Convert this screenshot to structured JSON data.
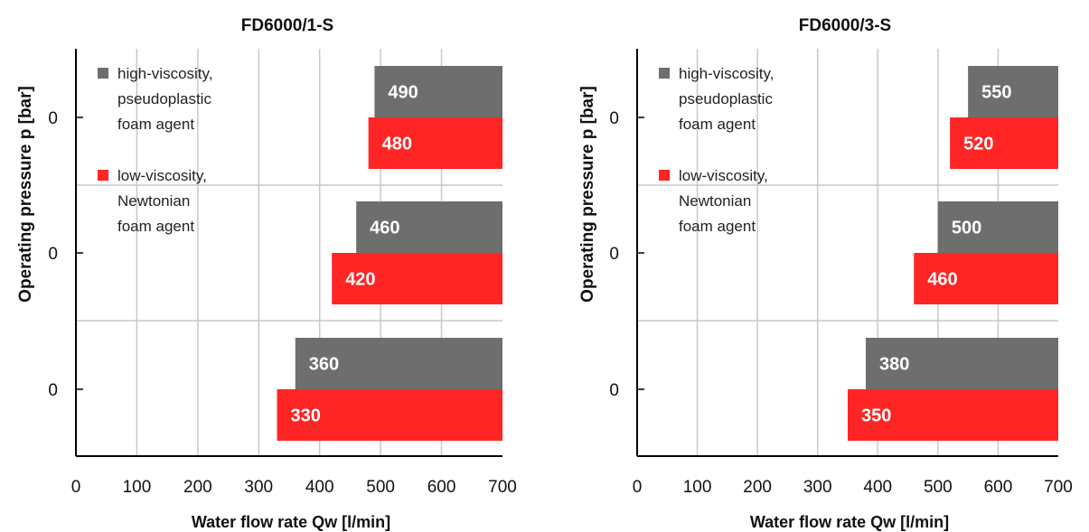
{
  "colors": {
    "high_viscosity": "#6e6e6e",
    "low_viscosity": "#ff2525",
    "grid": "#c8c8c8",
    "axis": "#000000"
  },
  "chart_data": [
    {
      "type": "bar",
      "orientation": "horizontal",
      "title": "FD6000/1-S",
      "xlabel": "Water flow rate Qw [l/min]",
      "ylabel": "Operating pressure  p [bar]",
      "xlim": [
        0,
        700
      ],
      "xticks": [
        "0",
        "100",
        "200",
        "300",
        "400",
        "500",
        "600",
        "700"
      ],
      "categories": [
        "0",
        "0",
        "0"
      ],
      "grid": true,
      "legend_position": "top-left",
      "series": [
        {
          "name": [
            "high-viscosity,",
            "pseudoplastic",
            "foam agent"
          ],
          "color_key": "high_viscosity",
          "values": [
            490,
            460,
            360
          ]
        },
        {
          "name": [
            "low-viscosity,",
            "Newtonian",
            "foam agent"
          ],
          "color_key": "low_viscosity",
          "values": [
            480,
            420,
            330
          ]
        }
      ]
    },
    {
      "type": "bar",
      "orientation": "horizontal",
      "title": "FD6000/3-S",
      "xlabel": "Water flow rate Qw [l/min]",
      "ylabel": "Operating pressure  p [bar]",
      "xlim": [
        0,
        700
      ],
      "xticks": [
        "0",
        "100",
        "200",
        "300",
        "400",
        "500",
        "600",
        "700"
      ],
      "categories": [
        "0",
        "0",
        "0"
      ],
      "grid": true,
      "legend_position": "top-left",
      "series": [
        {
          "name": [
            "high-viscosity,",
            "pseudoplastic",
            "foam agent"
          ],
          "color_key": "high_viscosity",
          "values": [
            550,
            500,
            380
          ]
        },
        {
          "name": [
            "low-viscosity,",
            "Newtonian",
            "foam agent"
          ],
          "color_key": "low_viscosity",
          "values": [
            520,
            460,
            350
          ]
        }
      ]
    }
  ]
}
